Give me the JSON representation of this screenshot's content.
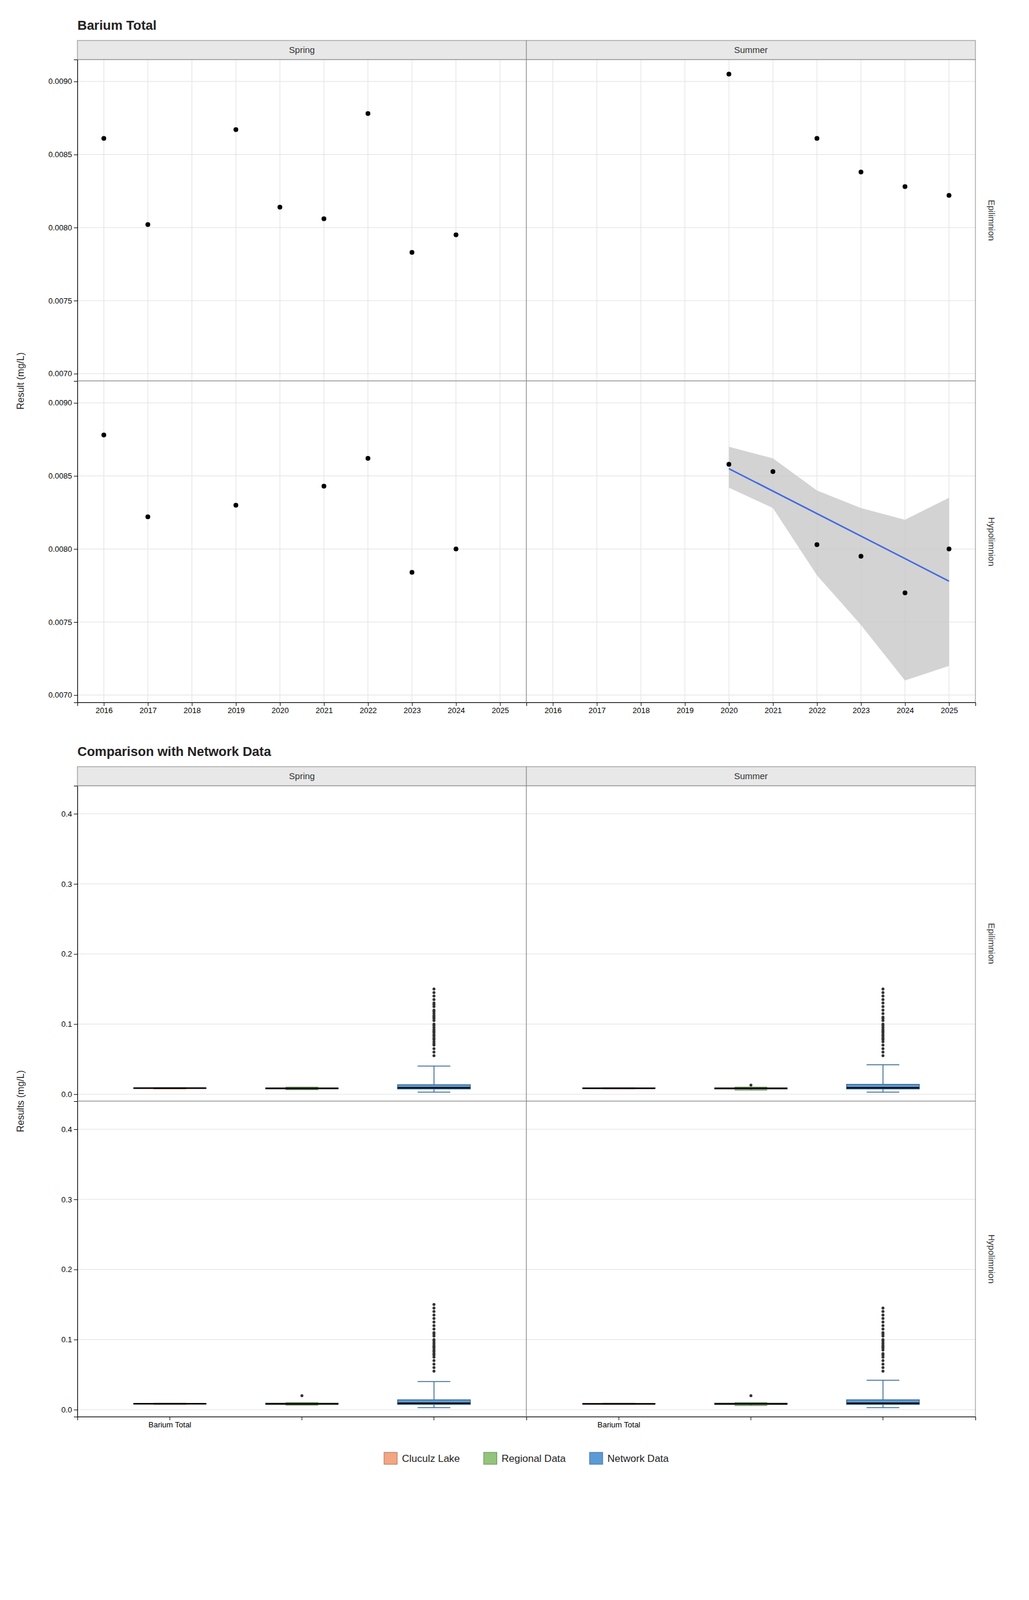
{
  "chart_data": [
    {
      "type": "scatter",
      "title": "Barium Total",
      "ylabel": "Result (mg/L)",
      "panels": [
        {
          "title": "Spring",
          "xlim": [
            2015.4,
            2025.6
          ],
          "xticks": [
            2016,
            2017,
            2018,
            2019,
            2020,
            2021,
            2022,
            2023,
            2024,
            2025
          ],
          "ylim": [
            0.00695,
            0.00915
          ],
          "yticks": [
            {
              "value": 0.007,
              "label": "0.0070"
            },
            0.0075,
            {
              "value": 0.008,
              "label": "0.0080"
            },
            0.0085,
            {
              "value": 0.009,
              "label": "0.0090"
            }
          ],
          "grid": true,
          "tick_labels": "y",
          "series": [
            {
              "color": "#000000",
              "x": [
                2016,
                2017,
                2019,
                2020,
                2021,
                2022,
                2023,
                2024
              ],
              "values": [
                0.00861,
                0.00802,
                0.00867,
                0.00814,
                0.00806,
                0.00878,
                0.00783,
                0.00795
              ]
            }
          ]
        },
        {
          "title": "Summer",
          "annotations": [
            {
              "text": "Epilimnion"
            }
          ],
          "xlim": [
            2015.4,
            2025.6
          ],
          "xticks": [
            2016,
            2017,
            2018,
            2019,
            2020,
            2021,
            2022,
            2023,
            2024,
            2025
          ],
          "ylim": [
            0.00695,
            0.00915
          ],
          "yticks": [
            {
              "value": 0.007,
              "label": "0.0070"
            },
            0.0075,
            {
              "value": 0.008,
              "label": "0.0080"
            },
            0.0085,
            {
              "value": 0.009,
              "label": "0.0090"
            }
          ],
          "grid": true,
          "tick_labels": false,
          "series": [
            {
              "color": "#000000",
              "x": [
                2020,
                2022,
                2023,
                2024,
                2025
              ],
              "values": [
                0.00905,
                0.00861,
                0.00838,
                0.00828,
                0.00822
              ]
            }
          ]
        },
        {
          "xlim": [
            2015.4,
            2025.6
          ],
          "xticks": [
            2016,
            2017,
            2018,
            2019,
            2020,
            2021,
            2022,
            2023,
            2024,
            2025
          ],
          "ylim": [
            0.00695,
            0.00915
          ],
          "yticks": [
            {
              "value": 0.007,
              "label": "0.0070"
            },
            0.0075,
            {
              "value": 0.008,
              "label": "0.0080"
            },
            0.0085,
            {
              "value": 0.009,
              "label": "0.0090"
            }
          ],
          "grid": true,
          "series": [
            {
              "color": "#000000",
              "x": [
                2016,
                2017,
                2019,
                2021,
                2022,
                2023,
                2024
              ],
              "values": [
                0.00878,
                0.00822,
                0.0083,
                0.00843,
                0.00862,
                0.00784,
                0.008
              ]
            }
          ]
        },
        {
          "annotations": [
            {
              "text": "Hypolimnion"
            }
          ],
          "xlim": [
            2015.4,
            2025.6
          ],
          "xticks": [
            2016,
            2017,
            2018,
            2019,
            2020,
            2021,
            2022,
            2023,
            2024,
            2025
          ],
          "ylim": [
            0.00695,
            0.00915
          ],
          "yticks": [
            {
              "value": 0.007,
              "label": "0.0070"
            },
            0.0075,
            {
              "value": 0.008,
              "label": "0.0080"
            },
            0.0085,
            {
              "value": 0.009,
              "label": "0.0090"
            }
          ],
          "grid": true,
          "tick_labels": "x",
          "series": [
            {
              "type": "area",
              "color": "#c8c8c8",
              "x": [
                2020,
                2021,
                2022,
                2023,
                2024,
                2025
              ],
              "upper": [
                0.0087,
                0.00862,
                0.0084,
                0.00828,
                0.0082,
                0.00835
              ],
              "lower": [
                0.00842,
                0.00828,
                0.00782,
                0.00748,
                0.0071,
                0.0072
              ]
            },
            {
              "type": "line",
              "color": "#4169e1",
              "x": [
                2020,
                2025
              ],
              "values": [
                0.00855,
                0.00778
              ]
            },
            {
              "type": "scatter",
              "color": "#000000",
              "x": [
                2020,
                2021,
                2022,
                2023,
                2024,
                2025
              ],
              "values": [
                0.00858,
                0.00853,
                0.00803,
                0.00795,
                0.0077,
                0.008
              ]
            }
          ]
        }
      ]
    },
    {
      "type": "box",
      "title": "Comparison with Network Data",
      "ylabel": "Results (mg/L)",
      "legend": "bottom",
      "series": [
        {
          "name": "Cluculz Lake",
          "color": "#f4a582"
        },
        {
          "name": "Regional Data",
          "color": "#92c47c"
        },
        {
          "name": "Network Data",
          "color": "#5b9bd5"
        }
      ],
      "panels": [
        {
          "title": "Spring",
          "categories": [
            null,
            null,
            null
          ],
          "ylim": [
            -0.01,
            0.44
          ],
          "yticks": [
            {
              "value": 0,
              "label": "0.0"
            },
            0.1,
            0.2,
            0.3,
            0.4
          ],
          "grid": "y",
          "tick_labels": "y",
          "values": [
            {
              "med": 0.0086,
              "q1": 0.0082,
              "q3": 0.0088,
              "whislo": 0.0076,
              "whishi": 0.009
            },
            {
              "med": 0.0083,
              "q1": 0.0077,
              "q3": 0.009,
              "whislo": 0.0065,
              "whishi": 0.01
            },
            {
              "med": 0.009,
              "q1": 0.0075,
              "q3": 0.0135,
              "whislo": 0.003,
              "whishi": 0.04,
              "fliers": [
                0.055,
                0.06,
                0.065,
                0.07,
                0.072,
                0.075,
                0.078,
                0.08,
                0.083,
                0.085,
                0.088,
                0.09,
                0.092,
                0.095,
                0.098,
                0.1,
                0.105,
                0.108,
                0.11,
                0.112,
                0.115,
                0.118,
                0.12,
                0.125,
                0.128,
                0.13,
                0.135,
                0.14,
                0.145,
                0.15
              ]
            }
          ]
        },
        {
          "title": "Summer",
          "annotations": [
            {
              "text": "Epilimnion"
            }
          ],
          "categories": [
            null,
            null,
            null
          ],
          "ylim": [
            -0.01,
            0.44
          ],
          "yticks": [
            {
              "value": 0,
              "label": "0.0"
            },
            0.1,
            0.2,
            0.3,
            0.4
          ],
          "grid": "y",
          "tick_labels": false,
          "values": [
            {
              "med": 0.0085,
              "q1": 0.0082,
              "q3": 0.0089,
              "whislo": 0.0077,
              "whishi": 0.0091
            },
            {
              "med": 0.0082,
              "q1": 0.0075,
              "q3": 0.009,
              "whislo": 0.006,
              "whishi": 0.01,
              "fliers": [
                0.013
              ]
            },
            {
              "med": 0.009,
              "q1": 0.0075,
              "q3": 0.014,
              "whislo": 0.003,
              "whishi": 0.042,
              "fliers": [
                0.055,
                0.06,
                0.065,
                0.07,
                0.075,
                0.078,
                0.08,
                0.083,
                0.085,
                0.088,
                0.09,
                0.092,
                0.095,
                0.098,
                0.1,
                0.105,
                0.108,
                0.11,
                0.115,
                0.12,
                0.125,
                0.13,
                0.135,
                0.14,
                0.145,
                0.15
              ]
            }
          ]
        },
        {
          "categories": [
            "Barium Total",
            null,
            null
          ],
          "ylim": [
            -0.01,
            0.44
          ],
          "yticks": [
            {
              "value": 0,
              "label": "0.0"
            },
            0.1,
            0.2,
            0.3,
            0.4
          ],
          "grid": "y",
          "values": [
            {
              "med": 0.0085,
              "q1": 0.0082,
              "q3": 0.0088,
              "whislo": 0.0076,
              "whishi": 0.009
            },
            {
              "med": 0.0083,
              "q1": 0.0077,
              "q3": 0.0092,
              "whislo": 0.0065,
              "whishi": 0.01,
              "fliers": [
                0.02
              ]
            },
            {
              "med": 0.009,
              "q1": 0.0075,
              "q3": 0.014,
              "whislo": 0.003,
              "whishi": 0.04,
              "fliers": [
                0.055,
                0.06,
                0.065,
                0.07,
                0.075,
                0.078,
                0.08,
                0.083,
                0.085,
                0.088,
                0.09,
                0.092,
                0.095,
                0.098,
                0.1,
                0.105,
                0.108,
                0.11,
                0.115,
                0.12,
                0.125,
                0.13,
                0.135,
                0.14,
                0.145,
                0.15
              ]
            }
          ]
        },
        {
          "annotations": [
            {
              "text": "Hypolimnion"
            }
          ],
          "categories": [
            "Barium Total",
            null,
            null
          ],
          "ylim": [
            -0.01,
            0.44
          ],
          "yticks": [
            {
              "value": 0,
              "label": "0.0"
            },
            0.1,
            0.2,
            0.3,
            0.4
          ],
          "grid": "y",
          "tick_labels": "x",
          "values": [
            {
              "med": 0.0083,
              "q1": 0.008,
              "q3": 0.0088,
              "whislo": 0.0076,
              "whishi": 0.009
            },
            {
              "med": 0.0082,
              "q1": 0.0075,
              "q3": 0.0092,
              "whislo": 0.006,
              "whishi": 0.01,
              "fliers": [
                0.02
              ]
            },
            {
              "med": 0.009,
              "q1": 0.0075,
              "q3": 0.014,
              "whislo": 0.003,
              "whishi": 0.042,
              "fliers": [
                0.055,
                0.06,
                0.065,
                0.07,
                0.075,
                0.078,
                0.08,
                0.085,
                0.088,
                0.09,
                0.092,
                0.095,
                0.098,
                0.1,
                0.105,
                0.108,
                0.11,
                0.115,
                0.12,
                0.125,
                0.13,
                0.135,
                0.14,
                0.145
              ]
            }
          ]
        }
      ]
    }
  ]
}
